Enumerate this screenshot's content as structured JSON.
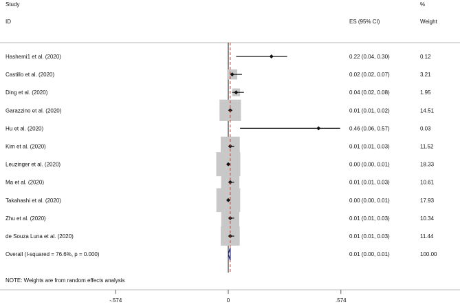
{
  "header": {
    "study_label": "Study",
    "id_label": "ID",
    "es_label": "ES (95% CI)",
    "pct_label": "%",
    "weight_label": "Weight"
  },
  "note": "NOTE: Weights are from random effects analysis",
  "colors": {
    "marker": "#111111",
    "box": "#c8c8c8",
    "null_line": "#111111",
    "overall_line": "#c0392b",
    "diamond": "#1a237e"
  },
  "chart_data": {
    "type": "forest",
    "x_ticks": [
      {
        "value": -0.574,
        "label": "-.574"
      },
      {
        "value": 0,
        "label": "0"
      },
      {
        "value": 0.574,
        "label": ".574"
      }
    ],
    "studies": [
      {
        "label": "Hashemi1 et al. (2020)",
        "es": 0.22,
        "lo": 0.04,
        "hi": 0.3,
        "es_text": "0.22 (0.04, 0.30)",
        "weight": 0.12,
        "weight_text": "0.12"
      },
      {
        "label": "Castillo et al. (2020)",
        "es": 0.02,
        "lo": 0.02,
        "hi": 0.07,
        "es_text": "0.02 (0.02, 0.07)",
        "weight": 3.21,
        "weight_text": "3.21"
      },
      {
        "label": "Ding et al. (2020)",
        "es": 0.04,
        "lo": 0.02,
        "hi": 0.08,
        "es_text": "0.04 (0.02, 0.08)",
        "weight": 1.95,
        "weight_text": "1.95"
      },
      {
        "label": "Garazzino et al. (2020)",
        "es": 0.01,
        "lo": 0.01,
        "hi": 0.02,
        "es_text": "0.01 (0.01, 0.02)",
        "weight": 14.51,
        "weight_text": "14.51"
      },
      {
        "label": "Hu et al. (2020)",
        "es": 0.46,
        "lo": 0.06,
        "hi": 0.57,
        "es_text": "0.46 (0.06, 0.57)",
        "weight": 0.03,
        "weight_text": "0.03"
      },
      {
        "label": "Kim et al. (2020)",
        "es": 0.01,
        "lo": 0.01,
        "hi": 0.03,
        "es_text": "0.01 (0.01, 0.03)",
        "weight": 11.52,
        "weight_text": "11.52"
      },
      {
        "label": "Leuzinger et al. (2020)",
        "es": 0.0,
        "lo": 0.0,
        "hi": 0.01,
        "es_text": "0.00 (0.00, 0.01)",
        "weight": 18.33,
        "weight_text": "18.33"
      },
      {
        "label": "Ma et al. (2020)",
        "es": 0.01,
        "lo": 0.01,
        "hi": 0.03,
        "es_text": "0.01 (0.01, 0.03)",
        "weight": 10.61,
        "weight_text": "10.61"
      },
      {
        "label": "Takahashi et al. (2020)",
        "es": 0.0,
        "lo": 0.0,
        "hi": 0.01,
        "es_text": "0.00 (0.00, 0.01)",
        "weight": 17.93,
        "weight_text": "17.93"
      },
      {
        "label": "Zhu et al. (2020)",
        "es": 0.01,
        "lo": 0.01,
        "hi": 0.03,
        "es_text": "0.01 (0.01, 0.03)",
        "weight": 10.34,
        "weight_text": "10.34"
      },
      {
        "label": "de Souza Luna et al. (2020)",
        "es": 0.01,
        "lo": 0.01,
        "hi": 0.03,
        "es_text": "0.01 (0.01, 0.03)",
        "weight": 11.44,
        "weight_text": "11.44"
      }
    ],
    "overall": {
      "label": "Overall  (I-squared = 76.6%, p = 0.000)",
      "es": 0.01,
      "lo": 0.0,
      "hi": 0.01,
      "es_text": "0.01 (0.00, 0.01)",
      "weight_text": "100.00"
    }
  }
}
